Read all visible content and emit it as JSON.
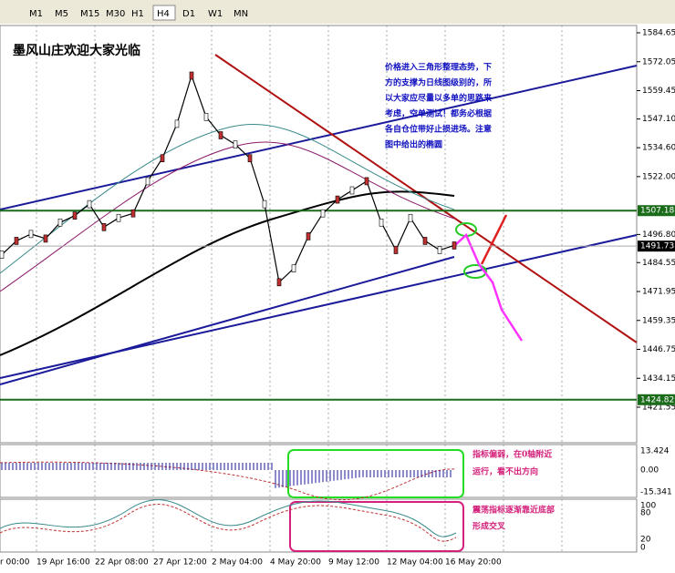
{
  "toolbar": {
    "timeframes": [
      "M1",
      "M5",
      "M15",
      "M30",
      "H1",
      "H4",
      "D1",
      "W1",
      "MN"
    ],
    "active": "H4"
  },
  "chart": {
    "type": "line",
    "welcome": "墨风山庄欢迎大家光临",
    "note_lines": [
      "价格进入三角形整理态势，下",
      "方的支撑为日线图级别的，所",
      "以大家应尽量以多单的思路来",
      "考虑，空单测试！都务必根据",
      "各自仓位带好止损进场。注意",
      "图中给出的椭圆"
    ],
    "price_ticks": [
      1584.65,
      1572.05,
      1559.45,
      1547.1,
      1534.6,
      1522.0,
      1496.8,
      1484.55,
      1471.95,
      1459.35,
      1446.75,
      1434.15,
      1421.55
    ],
    "price_tick_labels": [
      "1584.65",
      "1572.05",
      "1559.45",
      "1547.10",
      "1534.60",
      "1522.00",
      "1496.80",
      "1484.55",
      "1471.95",
      "1459.35",
      "1446.75",
      "1434.15",
      "1421.55"
    ],
    "levels": [
      {
        "value": 1507.18,
        "label": "1507.18",
        "color": "#1a6b1a"
      },
      {
        "value": 1424.82,
        "label": "1424.82",
        "color": "#1a6b1a"
      }
    ],
    "last_price": {
      "value": 1491.73,
      "label": "1491.73"
    },
    "price": [
      1488,
      1494,
      1497,
      1495,
      1502,
      1505,
      1510,
      1500,
      1504,
      1506,
      1520,
      1530,
      1545,
      1566,
      1548,
      1540,
      1536,
      1530,
      1510,
      1476,
      1482,
      1496,
      1506,
      1512,
      1516,
      1520,
      1502,
      1490,
      1504,
      1494,
      1490,
      1492
    ],
    "time_labels": [
      "r 00:00",
      "19 Apr 16:00",
      "22 Apr 08:00",
      "27 Apr 12:00",
      "2 May 04:00",
      "4 May 20:00",
      "9 May 12:00",
      "12 May 04:00",
      "16 May 20:00"
    ]
  },
  "macd": {
    "labels": [
      "13.424",
      "0.00",
      "-15.341"
    ],
    "note_lines": [
      "指标偏弱，在0轴附近",
      "运行，看不出方向"
    ]
  },
  "stoch": {
    "labels": [
      "100",
      "80",
      "20",
      "0"
    ],
    "note_lines": [
      "震荡指标逐渐靠近底部",
      "形成交叉"
    ]
  }
}
